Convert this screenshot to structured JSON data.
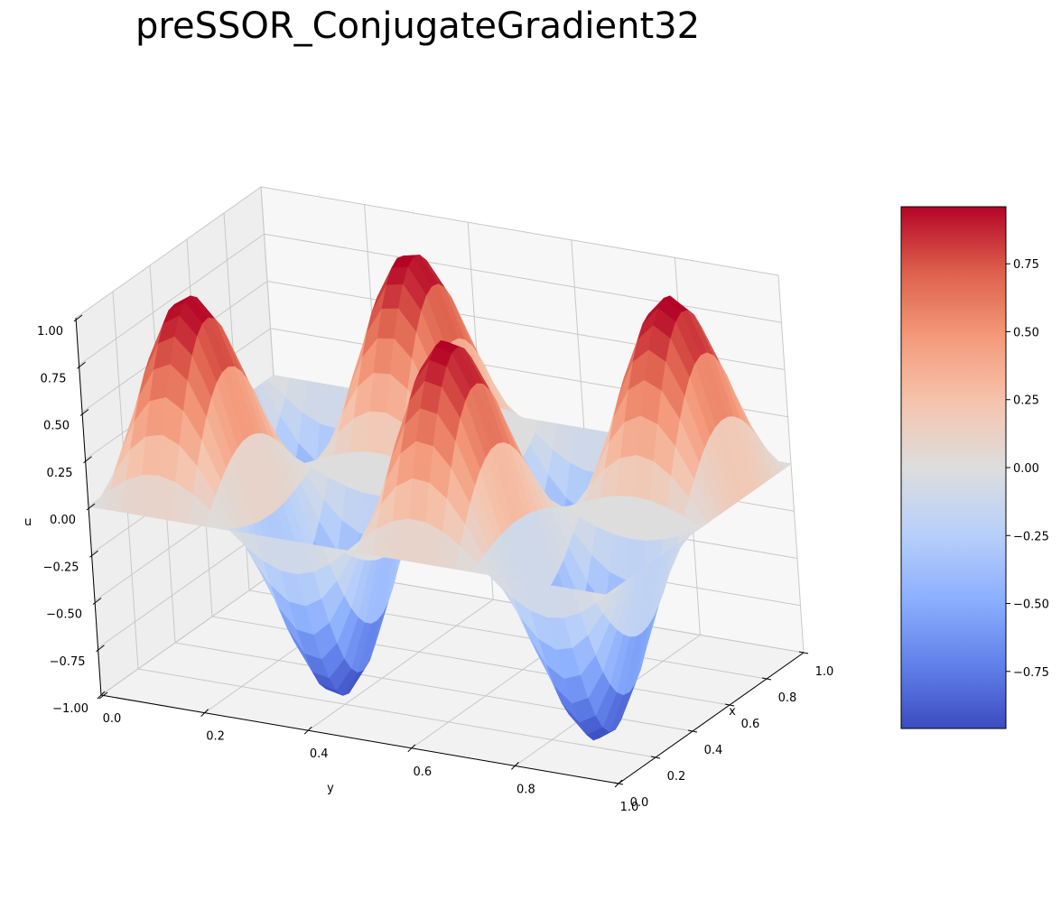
{
  "chart_data": {
    "type": "surface",
    "title": "preSSOR_ConjugateGradient32",
    "xlabel": "x",
    "ylabel": "y",
    "zlabel": "u",
    "x_range": [
      0,
      1
    ],
    "y_range": [
      0,
      1
    ],
    "z_range": [
      -1,
      1
    ],
    "x_ticks": [
      "0.0",
      "0.2",
      "0.4",
      "0.6",
      "0.8",
      "1.0"
    ],
    "y_ticks": [
      "0.0",
      "0.2",
      "0.4",
      "0.6",
      "0.8",
      "1.0"
    ],
    "z_ticks": [
      "−1.00",
      "−0.75",
      "−0.50",
      "−0.25",
      "0.00",
      "0.25",
      "0.50",
      "0.75",
      "1.00"
    ],
    "grid": true,
    "colormap": "coolwarm",
    "colorbar_range": [
      -0.96,
      0.96
    ],
    "colorbar_ticks": [
      "−0.75",
      "−0.50",
      "−0.25",
      "0.00",
      "0.25",
      "0.50",
      "0.75"
    ],
    "surface_function": "u(x, y) = sin(2πx) · sin(4πy)",
    "grid_resolution": 32,
    "value_min": -0.96,
    "value_max": 0.96
  }
}
